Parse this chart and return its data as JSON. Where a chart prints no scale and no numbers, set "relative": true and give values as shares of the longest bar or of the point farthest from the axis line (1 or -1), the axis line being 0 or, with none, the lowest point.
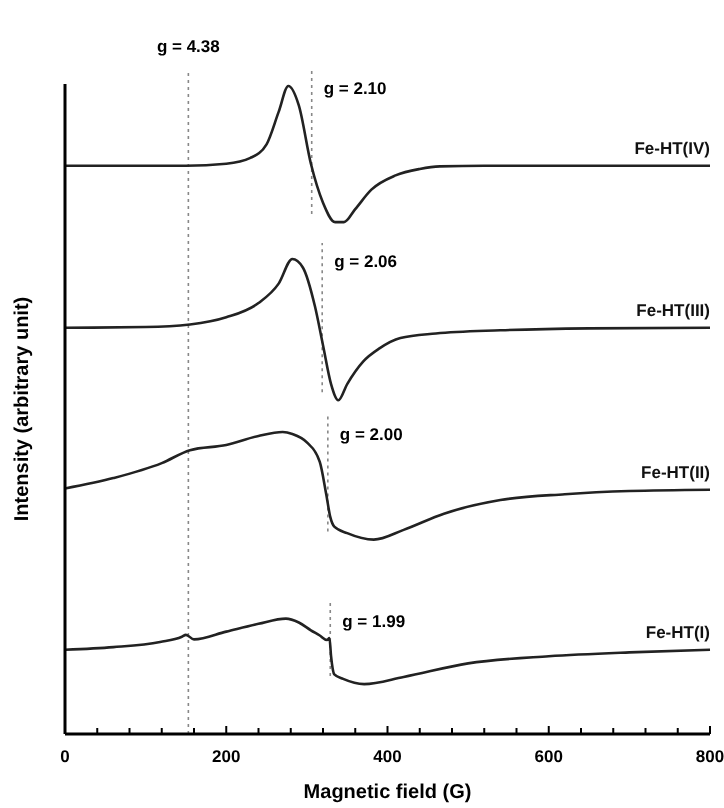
{
  "chart_data": {
    "type": "line",
    "relative": true,
    "xlabel": "Magnetic field (G)",
    "ylabel": "Intensity (arbitrary unit)",
    "xlim": [
      0,
      800
    ],
    "xticks": [
      0,
      {
        "value": 40,
        "label": null
      },
      {
        "value": 80,
        "label": null
      },
      {
        "value": 120,
        "label": null
      },
      {
        "value": 160,
        "label": null
      },
      200,
      {
        "value": 240,
        "label": null
      },
      {
        "value": 280,
        "label": null
      },
      {
        "value": 320,
        "label": null
      },
      {
        "value": 360,
        "label": null
      },
      400,
      {
        "value": 440,
        "label": null
      },
      {
        "value": 480,
        "label": null
      },
      {
        "value": 520,
        "label": null
      },
      {
        "value": 560,
        "label": null
      },
      600,
      {
        "value": 640,
        "label": null
      },
      {
        "value": 680,
        "label": null
      },
      {
        "value": 720,
        "label": null
      },
      {
        "value": 760,
        "label": null
      },
      800
    ],
    "grid": false,
    "legend": false,
    "marker": "none",
    "line_style": "solid",
    "series": [
      {
        "name": "Fe-HT(IV)",
        "color": "#222222",
        "x": [
          0,
          150,
          200,
          230,
          250,
          265,
          277,
          290,
          305,
          320,
          335,
          346,
          360,
          380,
          410,
          440,
          465,
          520,
          600,
          700,
          800
        ],
        "values": [
          0.877,
          0.877,
          0.88,
          0.889,
          0.91,
          0.96,
          1.0,
          0.97,
          0.88,
          0.82,
          0.79,
          0.79,
          0.81,
          0.84,
          0.862,
          0.872,
          0.876,
          0.877,
          0.877,
          0.877,
          0.877
        ]
      },
      {
        "name": "Fe-HT(III)",
        "color": "#222222",
        "x": [
          0,
          100,
          155,
          200,
          240,
          265,
          282,
          295,
          310,
          320,
          330,
          339,
          350,
          370,
          390,
          416,
          460,
          540,
          650,
          800
        ],
        "values": [
          0.627,
          0.628,
          0.632,
          0.643,
          0.665,
          0.695,
          0.733,
          0.72,
          0.66,
          0.6,
          0.54,
          0.515,
          0.54,
          0.575,
          0.595,
          0.611,
          0.618,
          0.623,
          0.626,
          0.627
        ]
      },
      {
        "name": "Fe-HT(II)",
        "color": "#222222",
        "x": [
          0,
          60,
          120,
          155,
          200,
          240,
          270,
          282,
          300,
          316,
          324,
          329,
          334,
          350,
          383,
          420,
          470,
          540,
          620,
          700,
          800
        ],
        "values": [
          0.379,
          0.395,
          0.418,
          0.438,
          0.446,
          0.46,
          0.466,
          0.463,
          0.45,
          0.42,
          0.37,
          0.335,
          0.32,
          0.31,
          0.3,
          0.315,
          0.34,
          0.361,
          0.37,
          0.375,
          0.377
        ]
      },
      {
        "name": "Fe-HT(I)",
        "color": "#222222",
        "x": [
          0,
          60,
          118,
          145,
          150,
          160,
          200,
          240,
          274,
          290,
          305,
          316,
          325,
          328,
          330,
          334,
          345,
          371,
          420,
          500,
          600,
          700,
          800
        ],
        "values": [
          0.13,
          0.134,
          0.142,
          0.15,
          0.153,
          0.146,
          0.158,
          0.17,
          0.178,
          0.172,
          0.16,
          0.152,
          0.145,
          0.148,
          0.12,
          0.092,
          0.085,
          0.077,
          0.088,
          0.109,
          0.12,
          0.126,
          0.13
        ]
      }
    ],
    "ref_lines": [
      {
        "axis": "x",
        "value": 153,
        "line_style": "dotted",
        "color": "#888888"
      },
      {
        "axis": "x",
        "value": 306,
        "line_style": "dotted",
        "color": "#888888"
      },
      {
        "axis": "x",
        "value": 319,
        "line_style": "dotted",
        "color": "#888888"
      },
      {
        "axis": "x",
        "value": 326,
        "line_style": "dotted",
        "color": "#888888"
      },
      {
        "axis": "x",
        "value": 329,
        "line_style": "dotted",
        "color": "#888888"
      }
    ],
    "annotations": [
      "g = 4.38",
      "g = 2.10",
      "g = 2.06",
      "g = 2.00",
      "g = 1.99"
    ]
  }
}
